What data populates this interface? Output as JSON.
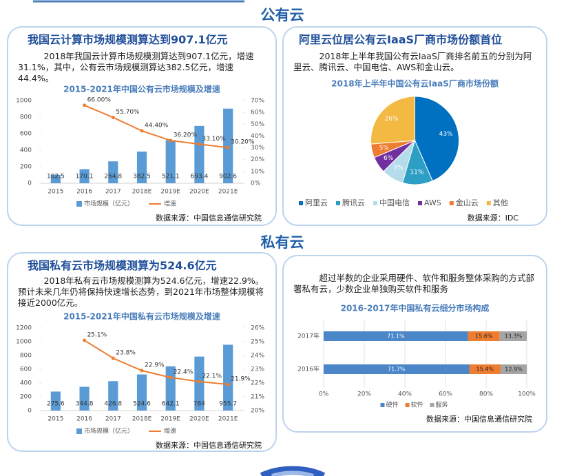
{
  "sections": [
    {
      "heading": "公有云"
    },
    {
      "heading": "私有云"
    }
  ],
  "panels": [
    {
      "title": "我国云计算市场规模测算达到907.1亿元",
      "text": "2018年我国云计算市场规模测算达到907.1亿元，增速31.1%，其中，公有云市场规模测算达382.5亿元，增速44.4%。",
      "source": "数据来源：中国信息通信研究院"
    },
    {
      "title": "阿里云位居公有云IaaS厂商市场份额首位",
      "text": "2018年上半年我国公有云IaaS厂商排名前五的分别为阿里云、腾讯云、中国电信、AWS和金山云。",
      "source": "数据来源：IDC"
    },
    {
      "title": "我国私有云市场规模测算为524.6亿元",
      "text": "2018年私有云市场规模测算为524.6亿元，增速22.9%。预计未来几年仍将保持快速增长态势，到2021年市场整体规模将接近2000亿元。",
      "source": "数据来源：中国信息通信研究院"
    },
    {
      "title": null,
      "text": "超过半数的企业采用硬件、软件和服务整体采购的方式部署私有云，少数企业单独购买软件和服务",
      "source": "数据来源：中国信息通信研究院"
    }
  ],
  "chart_data": [
    {
      "type": "combo",
      "title": "2015-2021年中国公有云市场规模及增速",
      "categories": [
        "2015",
        "2016",
        "2017",
        "2018E",
        "2019E",
        "2020E",
        "2021E"
      ],
      "series": [
        {
          "name": "市场规模（亿元）",
          "color": "#5b9bd5",
          "values": [
            102.5,
            170.1,
            264.8,
            382.5,
            521.1,
            693.4,
            902.6
          ]
        },
        {
          "name": "增速",
          "color": "#ed7d31",
          "axis": "y2",
          "values": [
            null,
            66.0,
            55.7,
            44.4,
            36.2,
            33.1,
            30.2
          ],
          "value_labels": [
            null,
            "66.00%",
            "55.70%",
            "44.40%",
            "36.20%",
            "33.10%",
            "30.20%"
          ]
        }
      ],
      "ylim": [
        0,
        1000
      ],
      "yticks": [
        0,
        200,
        400,
        600,
        800,
        1000
      ],
      "y2lim": [
        0,
        70
      ],
      "y2ticks": [
        {
          "value": 0,
          "label": "0%"
        },
        {
          "value": 10,
          "label": "10%"
        },
        {
          "value": 20,
          "label": "20%"
        },
        {
          "value": 30,
          "label": "30%"
        },
        {
          "value": 40,
          "label": "40%"
        },
        {
          "value": 50,
          "label": "50%"
        },
        {
          "value": 60,
          "label": "60%"
        },
        {
          "value": 70,
          "label": "70%"
        }
      ],
      "grid": false
    },
    {
      "type": "pie",
      "title": "2018年上半年中国公有云IaaS厂商市场份额",
      "categories": [
        "阿里云",
        "腾讯云",
        "中国电信",
        "AWS",
        "金山云",
        "其他"
      ],
      "values": [
        43,
        11,
        8,
        6,
        5,
        26
      ],
      "value_labels": [
        "43%",
        "11%",
        "8%",
        "6%",
        "5%",
        "26%"
      ],
      "colors": [
        "#0070c0",
        "#2e9fc4",
        "#b4dceb",
        "#7030a0",
        "#ed7d31",
        "#f4b942"
      ]
    },
    {
      "type": "combo",
      "title": "2015-2021年中国私有云市场规模及增速",
      "categories": [
        "2015",
        "2016",
        "2017",
        "2018E",
        "2019E",
        "2020E",
        "2021E"
      ],
      "series": [
        {
          "name": "市场规模（亿元）",
          "color": "#5b9bd5",
          "values": [
            275.6,
            344.8,
            426.8,
            524.6,
            642.1,
            784,
            955.7
          ]
        },
        {
          "name": "增速",
          "color": "#ed7d31",
          "axis": "y2",
          "values": [
            null,
            25.1,
            23.8,
            22.9,
            22.4,
            22.1,
            21.9
          ],
          "value_labels": [
            null,
            "25.1%",
            "23.8%",
            "22.9%",
            "22.4%",
            "22.1%",
            "21.9%"
          ]
        }
      ],
      "ylim": [
        0,
        1200
      ],
      "yticks": [
        0,
        200,
        400,
        600,
        800,
        1000,
        1200
      ],
      "y2lim": [
        20,
        26
      ],
      "y2ticks": [
        {
          "value": 20,
          "label": "20%"
        },
        {
          "value": 21,
          "label": "21%"
        },
        {
          "value": 22,
          "label": "22%"
        },
        {
          "value": 23,
          "label": "23%"
        },
        {
          "value": 24,
          "label": "24%"
        },
        {
          "value": 25,
          "label": "25%"
        },
        {
          "value": 26,
          "label": "26%"
        }
      ],
      "grid": false
    },
    {
      "type": "stackedbar",
      "title": "2016-2017年中国私有云细分市场构成",
      "categories": [
        "2017年",
        "2016年"
      ],
      "series": [
        {
          "name": "硬件",
          "color": "#4a86c8",
          "values": [
            71.1,
            71.7
          ],
          "value_labels": [
            "71.1%",
            "71.7%"
          ]
        },
        {
          "name": "软件",
          "color": "#ed7d31",
          "values": [
            15.6,
            15.4
          ],
          "value_labels": [
            "15.6%",
            "15.4%"
          ]
        },
        {
          "name": "服务",
          "color": "#a5a5a5",
          "values": [
            13.3,
            12.9
          ],
          "value_labels": [
            "13.3%",
            "12.9%"
          ]
        }
      ],
      "xlim": [
        0,
        100
      ],
      "xticks": [
        {
          "value": 0,
          "label": "0%"
        },
        {
          "value": 20,
          "label": "20%"
        },
        {
          "value": 40,
          "label": "40%"
        },
        {
          "value": 60,
          "label": "60%"
        },
        {
          "value": 80,
          "label": "80%"
        },
        {
          "value": 100,
          "label": "100%"
        }
      ],
      "grid": true
    }
  ]
}
